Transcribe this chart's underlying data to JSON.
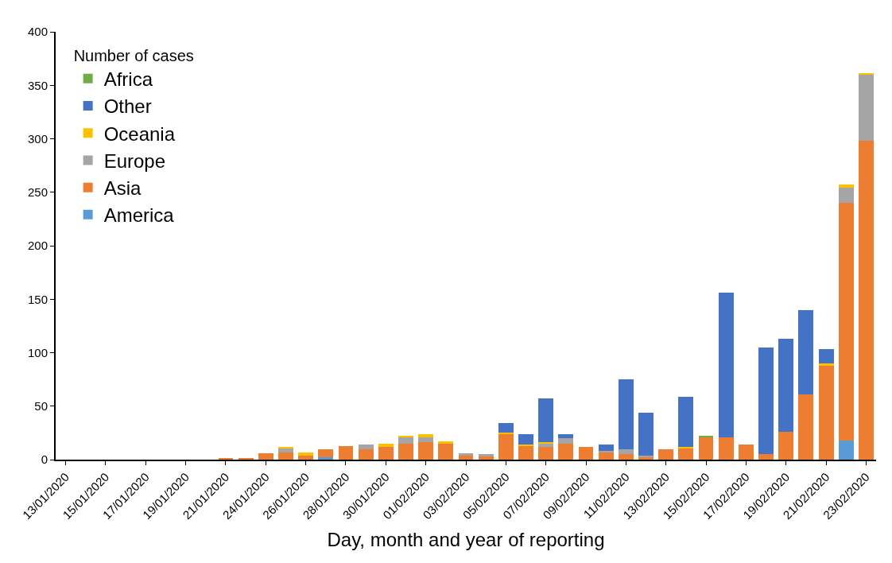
{
  "chart_data": {
    "type": "bar",
    "stacked": true,
    "xlabel": "Day, month and year of reporting",
    "legend_title": "Number of cases",
    "legend": "top left",
    "categories": [
      "13/01/2020",
      null,
      "15/01/2020",
      null,
      "17/01/2020",
      null,
      "19/01/2020",
      null,
      "21/01/2020",
      null,
      "24/01/2020",
      null,
      "26/01/2020",
      null,
      "28/01/2020",
      null,
      "30/01/2020",
      null,
      "01/02/2020",
      null,
      "03/02/2020",
      null,
      "05/02/2020",
      null,
      "07/02/2020",
      null,
      "09/02/2020",
      null,
      "11/02/2020",
      null,
      "13/02/2020",
      null,
      "15/02/2020",
      null,
      "17/02/2020",
      null,
      "19/02/2020",
      null,
      "21/02/2020",
      null,
      "23/02/2020"
    ],
    "ylim": [
      0,
      400
    ],
    "yticks": [
      0,
      50,
      100,
      150,
      200,
      250,
      300,
      350,
      400
    ],
    "series": [
      {
        "name": "America",
        "color": "#5b9bd5",
        "values": [
          0,
          0,
          0,
          0,
          0,
          0,
          0,
          0,
          0,
          0,
          0,
          0,
          0,
          2,
          0,
          0,
          0,
          0,
          null,
          0,
          null,
          0,
          0,
          0,
          null,
          0,
          0,
          0,
          0,
          0,
          0,
          0,
          0,
          0,
          0,
          0,
          0,
          0,
          null,
          18,
          0
        ]
      },
      {
        "name": "Asia",
        "color": "#ed7d31",
        "values": [
          0,
          0,
          0,
          0,
          0,
          0,
          0,
          0,
          1,
          1,
          6,
          7,
          4,
          8,
          13,
          10,
          12,
          15,
          16,
          15,
          4,
          3,
          24,
          13,
          12,
          15,
          12,
          7,
          5,
          2,
          10,
          11,
          21,
          21,
          14,
          5,
          26,
          61,
          88,
          222,
          298
        ]
      },
      {
        "name": "Europe",
        "color": "#a5a5a5",
        "values": [
          0,
          0,
          0,
          0,
          0,
          0,
          0,
          0,
          0,
          0,
          0,
          4,
          0,
          0,
          0,
          4,
          0,
          6,
          5,
          0,
          2,
          2,
          0,
          0,
          3,
          5,
          0,
          1,
          5,
          2,
          0,
          0,
          0,
          0,
          0,
          0,
          0,
          0,
          0,
          14,
          62
        ]
      },
      {
        "name": "Oceania",
        "color": "#ffc000",
        "values": [
          0,
          0,
          0,
          0,
          0,
          0,
          0,
          0,
          0,
          0,
          0,
          1,
          3,
          0,
          0,
          0,
          3,
          1,
          3,
          2,
          0,
          0,
          1,
          1,
          1,
          0,
          0,
          0,
          0,
          0,
          0,
          1,
          0,
          0,
          0,
          0,
          0,
          0,
          2,
          3,
          1
        ]
      },
      {
        "name": "Other",
        "color": "#4472c4",
        "values": [
          0,
          0,
          0,
          0,
          0,
          0,
          0,
          0,
          0,
          0,
          0,
          0,
          0,
          0,
          0,
          0,
          0,
          0,
          0,
          0,
          0,
          0,
          9,
          10,
          41,
          4,
          0,
          6,
          65,
          40,
          0,
          47,
          0,
          135,
          0,
          100,
          87,
          79,
          13,
          0,
          0
        ]
      },
      {
        "name": "Africa",
        "color": "#70ad47",
        "values": [
          0,
          0,
          0,
          0,
          0,
          0,
          0,
          0,
          0,
          0,
          0,
          0,
          0,
          0,
          0,
          0,
          0,
          0,
          0,
          0,
          0,
          0,
          0,
          0,
          0,
          0,
          0,
          0,
          0,
          0,
          0,
          0,
          1,
          0,
          0,
          0,
          0,
          0,
          0,
          0,
          0
        ]
      }
    ]
  }
}
